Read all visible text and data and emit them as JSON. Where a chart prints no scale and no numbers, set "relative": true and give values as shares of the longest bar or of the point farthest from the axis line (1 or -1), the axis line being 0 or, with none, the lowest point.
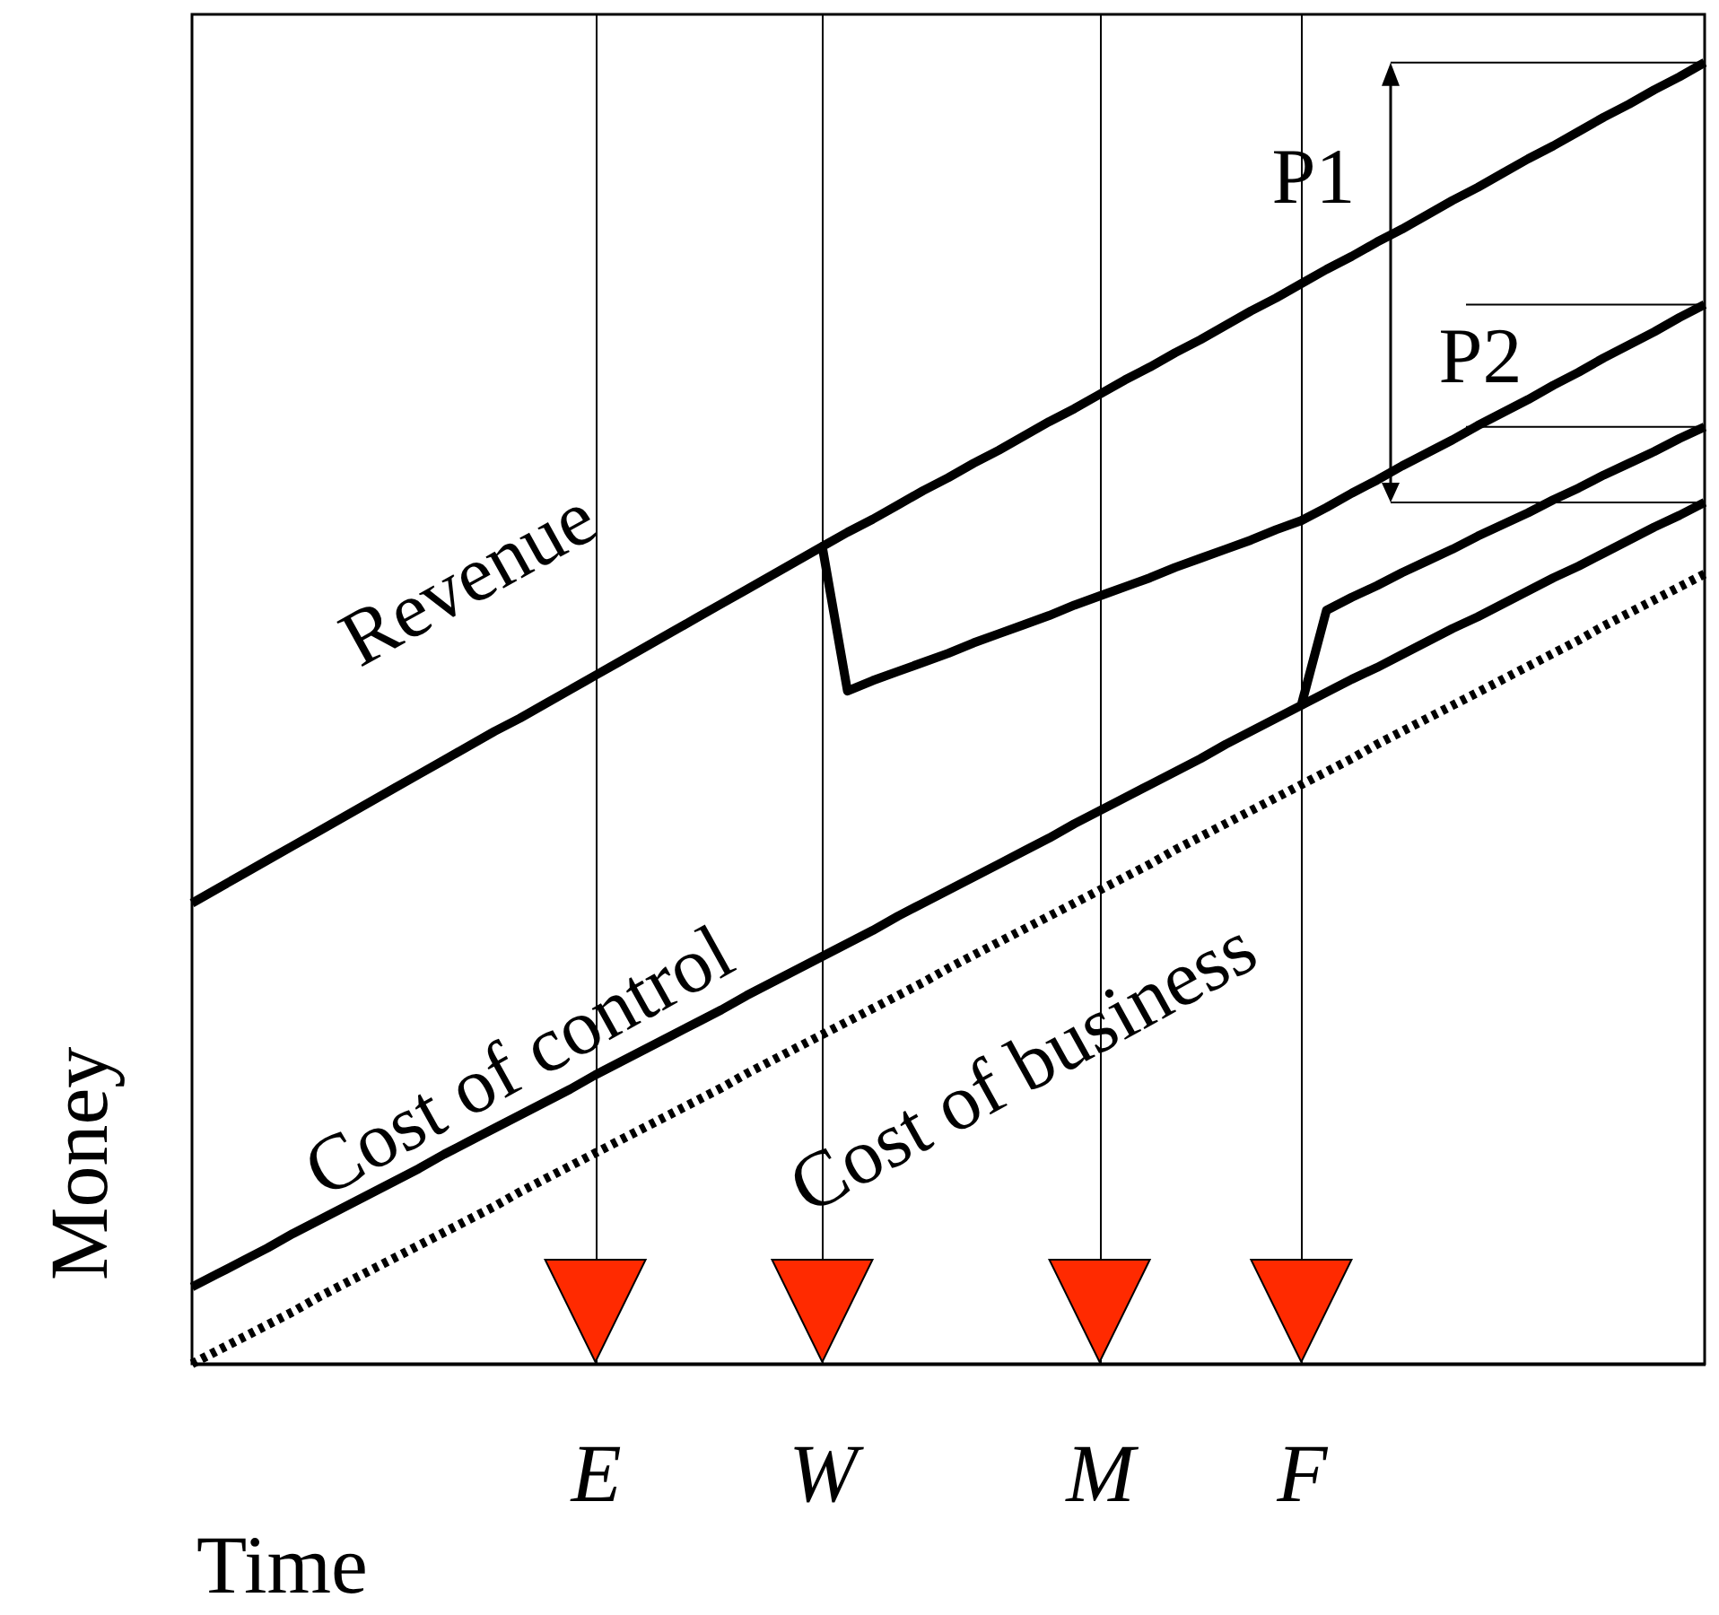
{
  "chart_data": {
    "type": "line",
    "xlabel": "Time",
    "ylabel": "Money",
    "relative": true,
    "categories": [
      null,
      null,
      null,
      null,
      null,
      null,
      null,
      null,
      null,
      null,
      null,
      null,
      null,
      null,
      null,
      null,
      "E",
      null,
      null,
      null,
      null,
      null,
      null,
      null,
      null,
      "W",
      null,
      null,
      null,
      null,
      null,
      null,
      null,
      null,
      null,
      null,
      "M",
      null,
      null,
      null,
      null,
      null,
      null,
      null,
      "F",
      null,
      null,
      null,
      null,
      null,
      null,
      null,
      null,
      null,
      null,
      null,
      null,
      null,
      null,
      null,
      null
    ],
    "grid": "x",
    "tick_labels": "x",
    "legend": false,
    "marker": "none",
    "series": [
      {
        "name": "Revenue",
        "color": "#000000",
        "values": [
          0.354,
          0.365,
          0.376,
          0.387,
          0.398,
          0.409,
          0.42,
          0.431,
          0.442,
          0.453,
          0.464,
          0.475,
          0.486,
          0.496,
          0.507,
          0.518,
          0.529,
          0.54,
          0.551,
          0.562,
          0.573,
          0.584,
          0.595,
          0.606,
          0.617,
          0.628,
          0.517,
          0.525,
          0.532,
          0.539,
          0.546,
          0.554,
          0.561,
          0.568,
          0.575,
          0.583,
          0.59,
          0.597,
          0.604,
          0.612,
          0.619,
          0.626,
          0.633,
          0.641,
          0.648,
          0.658,
          0.669,
          0.679,
          0.69,
          0.7,
          0.71,
          0.721,
          0.731,
          0.741,
          0.752,
          0.762,
          0.773,
          0.783,
          0.793,
          0.804,
          0.814
        ]
      },
      {
        "name": "Cost of control",
        "color": "#000000",
        "values": [
          0.059,
          0.069,
          0.079,
          0.089,
          0.1,
          0.11,
          0.12,
          0.13,
          0.14,
          0.15,
          0.161,
          0.171,
          0.181,
          0.191,
          0.201,
          0.211,
          0.222,
          0.232,
          0.242,
          0.252,
          0.262,
          0.272,
          0.283,
          0.293,
          0.303,
          0.313,
          0.323,
          0.333,
          0.344,
          0.354,
          0.364,
          0.374,
          0.384,
          0.394,
          0.404,
          0.415,
          0.425,
          0.435,
          0.445,
          0.455,
          0.465,
          0.476,
          0.486,
          0.496,
          0.506,
          0.579,
          0.589,
          0.598,
          0.608,
          0.617,
          0.626,
          0.636,
          0.645,
          0.654,
          0.664,
          0.673,
          0.683,
          0.692,
          0.701,
          0.711,
          0.72
        ]
      },
      {
        "name": "Cost of business",
        "color": "#000000",
        "line_style": "dotted",
        "values": [
          0,
          0.01,
          0.02,
          0.03,
          0.04,
          0.051,
          0.061,
          0.071,
          0.081,
          0.091,
          0.101,
          0.111,
          0.121,
          0.132,
          0.142,
          0.152,
          0.162,
          0.172,
          0.182,
          0.192,
          0.202,
          0.212,
          0.223,
          0.233,
          0.243,
          0.253,
          0.263,
          0.273,
          0.283,
          0.293,
          0.304,
          0.314,
          0.324,
          0.334,
          0.344,
          0.354,
          0.364,
          0.374,
          0.384,
          0.395,
          0.405,
          0.415,
          0.425,
          0.435,
          0.445,
          0.455,
          0.465,
          0.476,
          0.486,
          0.496,
          0.506,
          0.516,
          0.526,
          0.536,
          0.546,
          0.556,
          0.567,
          0.577,
          0.587,
          0.597,
          0.607
        ]
      },
      {
        "color": "#000000",
        "values": [
          null,
          null,
          null,
          null,
          null,
          null,
          null,
          null,
          null,
          null,
          null,
          null,
          null,
          null,
          null,
          null,
          null,
          null,
          null,
          null,
          null,
          null,
          null,
          null,
          null,
          0.628,
          0.639,
          0.649,
          0.66,
          0.671,
          0.681,
          0.692,
          0.702,
          0.713,
          0.724,
          0.734,
          0.745,
          0.756,
          0.766,
          0.777,
          0.787,
          0.798,
          0.809,
          0.819,
          0.83,
          0.841,
          0.851,
          0.862,
          0.872,
          0.883,
          0.894,
          0.904,
          0.915,
          0.926,
          0.936,
          0.947,
          0.958,
          0.968,
          0.979,
          0.989,
          1.0
        ]
      },
      {
        "color": "#000000",
        "values": [
          null,
          null,
          null,
          null,
          null,
          null,
          null,
          null,
          null,
          null,
          null,
          null,
          null,
          null,
          null,
          null,
          null,
          null,
          null,
          null,
          null,
          null,
          null,
          null,
          null,
          null,
          null,
          null,
          null,
          null,
          null,
          null,
          null,
          null,
          null,
          null,
          null,
          null,
          null,
          null,
          null,
          null,
          null,
          null,
          0.506,
          0.516,
          0.526,
          0.535,
          0.545,
          0.555,
          0.565,
          0.574,
          0.584,
          0.594,
          0.604,
          0.613,
          0.623,
          0.633,
          0.643,
          0.652,
          0.662
        ]
      }
    ],
    "annotations": [
      "P1",
      "P2"
    ]
  }
}
